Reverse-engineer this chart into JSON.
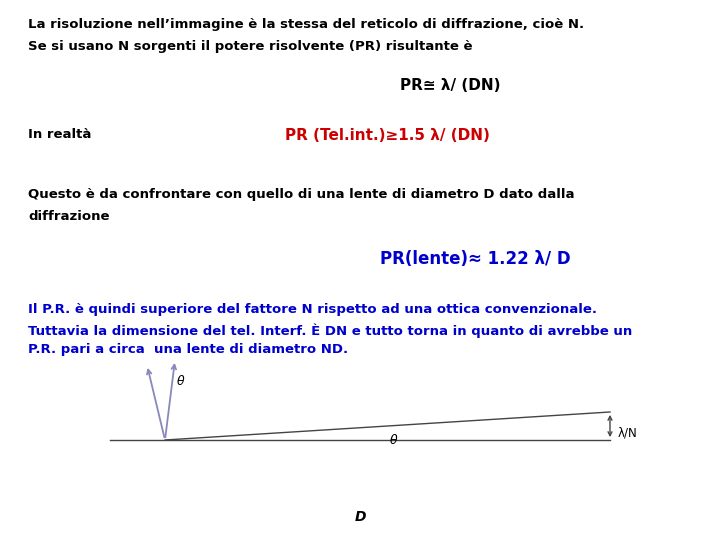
{
  "bg_color": "#ffffff",
  "line1": "La risoluzione nell’immagine è la stessa del reticolo di diffrazione, cioè N.",
  "line2": "Se si usano N sorgenti il potere risolvente (PR) risultante è",
  "formula1": "PR≅ λ/ (DN)",
  "label_realta": "In realtà",
  "formula2": "PR (Tel.int.)≥1.5 λ/ (DN)",
  "line3": "Questo è da confrontare con quello di una lente di diametro D dato dalla",
  "line4": "diffrazione",
  "formula3": "PR(lente)≈ 1.22 λ/ D",
  "blue_line1": "Il P.R. è quindi superiore del fattore N rispetto ad una ottica convenzionale.",
  "blue_line2": "Tuttavia la dimensione del tel. Interf. È DN e tutto torna in quanto di avrebbe un",
  "blue_line3": "P.R. pari a circa  una lente di diametro ND.",
  "color_black": "#000000",
  "color_red": "#cc0000",
  "color_blue": "#0000cc",
  "fontsize_main": 9.5,
  "fontsize_formula1": 11,
  "fontsize_formula2": 11,
  "fontsize_formula3": 12,
  "fontsize_blue": 9.5,
  "diagram_arrow_color": "#8888bb",
  "diagram_line_color": "#444444"
}
